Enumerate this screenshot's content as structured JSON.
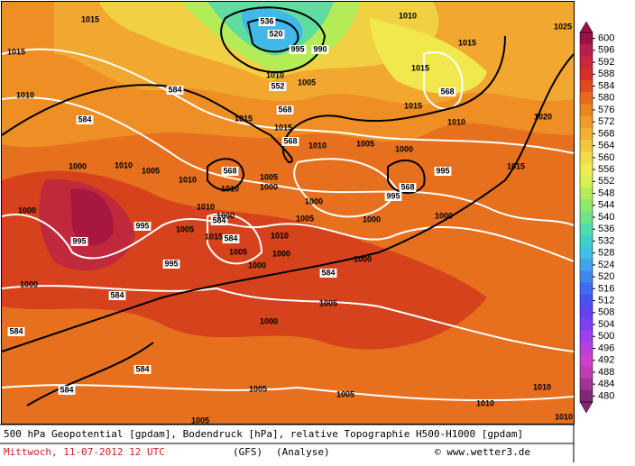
{
  "map": {
    "contour_labels": [
      1015,
      1015,
      1010,
      584,
      584,
      1015,
      568,
      1015,
      568,
      1010,
      1005,
      1000,
      995,
      568,
      1010,
      1005,
      1000,
      568,
      995,
      1015,
      1000,
      1000,
      1000,
      1000,
      1005,
      1010,
      1010,
      1010,
      584,
      995,
      995,
      1005,
      1000,
      1015,
      584,
      995,
      1005,
      1000,
      1000,
      1005,
      1010,
      584,
      1000,
      1000,
      584,
      1000,
      1000,
      1005,
      584,
      584,
      584,
      1005,
      1005,
      1010,
      1010,
      1005,
      1010,
      1020,
      1025,
      1015,
      1015,
      568,
      1010,
      1015,
      1010,
      536,
      520,
      552,
      1005,
      990,
      1010,
      995
    ],
    "legend": {
      "values": [
        600,
        596,
        592,
        588,
        584,
        580,
        576,
        572,
        568,
        564,
        560,
        556,
        552,
        548,
        544,
        540,
        536,
        532,
        528,
        524,
        520,
        516,
        512,
        508,
        504,
        500,
        496,
        492,
        488,
        484,
        480
      ],
      "colors": [
        "#9c1048",
        "#b8204c",
        "#c8283c",
        "#d63028",
        "#e04a1c",
        "#e8681c",
        "#ec8420",
        "#f09a28",
        "#f2b034",
        "#f2c640",
        "#f2dc4c",
        "#f0ec50",
        "#d8f050",
        "#b4ec58",
        "#90e868",
        "#70e488",
        "#50dcac",
        "#40d0cc",
        "#40c0e8",
        "#40a4f0",
        "#4088f0",
        "#406cf0",
        "#4c50f0",
        "#6444f0",
        "#8040f0",
        "#9c40ec",
        "#b840e0",
        "#cc40cc",
        "#c03cb0",
        "#a03494",
        "#802878"
      ]
    },
    "footer": {
      "line1": "500 hPa Geopotential [gpdam], Bodendruck [hPa], relative Topographie H500-H1000 [gpdam]",
      "date": "Mittwoch, 11-07-2012  12 UTC",
      "model": "(GFS)",
      "run": "(Analyse)",
      "credit": "© www.wetter3.de"
    }
  }
}
